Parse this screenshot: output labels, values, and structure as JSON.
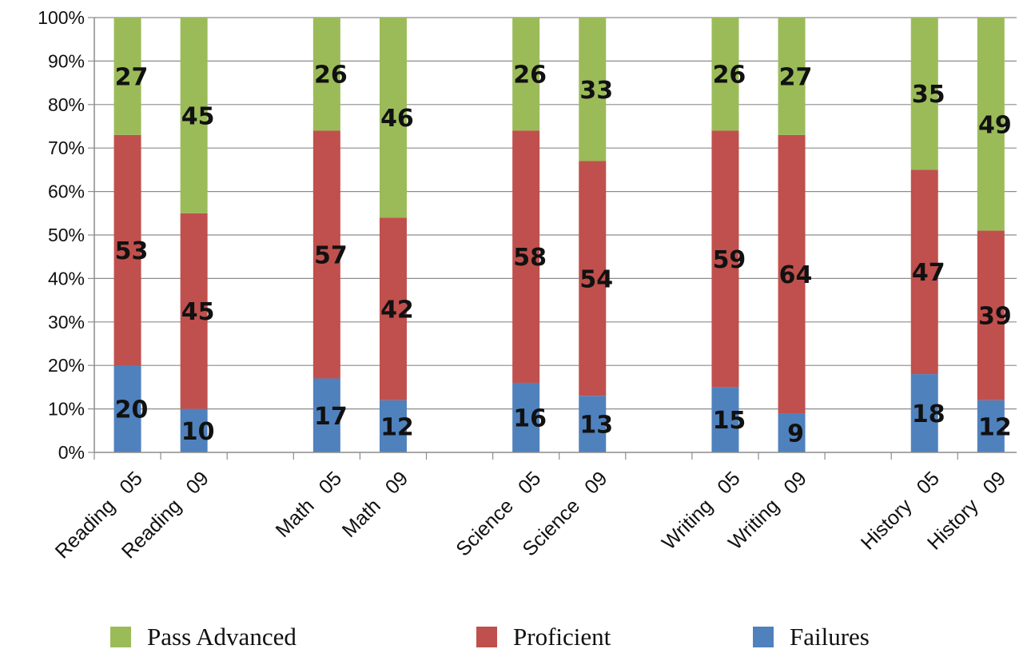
{
  "chart_data": {
    "type": "bar",
    "stacked": true,
    "categories": [
      "Reading   05",
      "Reading   09",
      "Math   05",
      "Math   09",
      "Science   05",
      "Science   09",
      "Writing   05",
      "Writing   09",
      "History   05",
      "History   09"
    ],
    "series": [
      {
        "name": "Failures",
        "color": "#4f81bd",
        "values": [
          20,
          10,
          17,
          12,
          16,
          13,
          15,
          9,
          18,
          12
        ]
      },
      {
        "name": "Proficient",
        "color": "#c0504d",
        "values": [
          53,
          45,
          57,
          42,
          58,
          54,
          59,
          64,
          47,
          39
        ]
      },
      {
        "name": "Pass Advanced",
        "color": "#9bbb59",
        "values": [
          27,
          45,
          26,
          46,
          26,
          33,
          26,
          27,
          35,
          49
        ]
      }
    ],
    "ytick_labels": [
      "0%",
      "10%",
      "20%",
      "30%",
      "40%",
      "50%",
      "60%",
      "70%",
      "80%",
      "90%",
      "100%"
    ],
    "ylim": [
      0,
      100
    ],
    "grid": true,
    "legend_position": "bottom",
    "legend_order": [
      "Pass Advanced",
      "Proficient",
      "Failures"
    ]
  }
}
